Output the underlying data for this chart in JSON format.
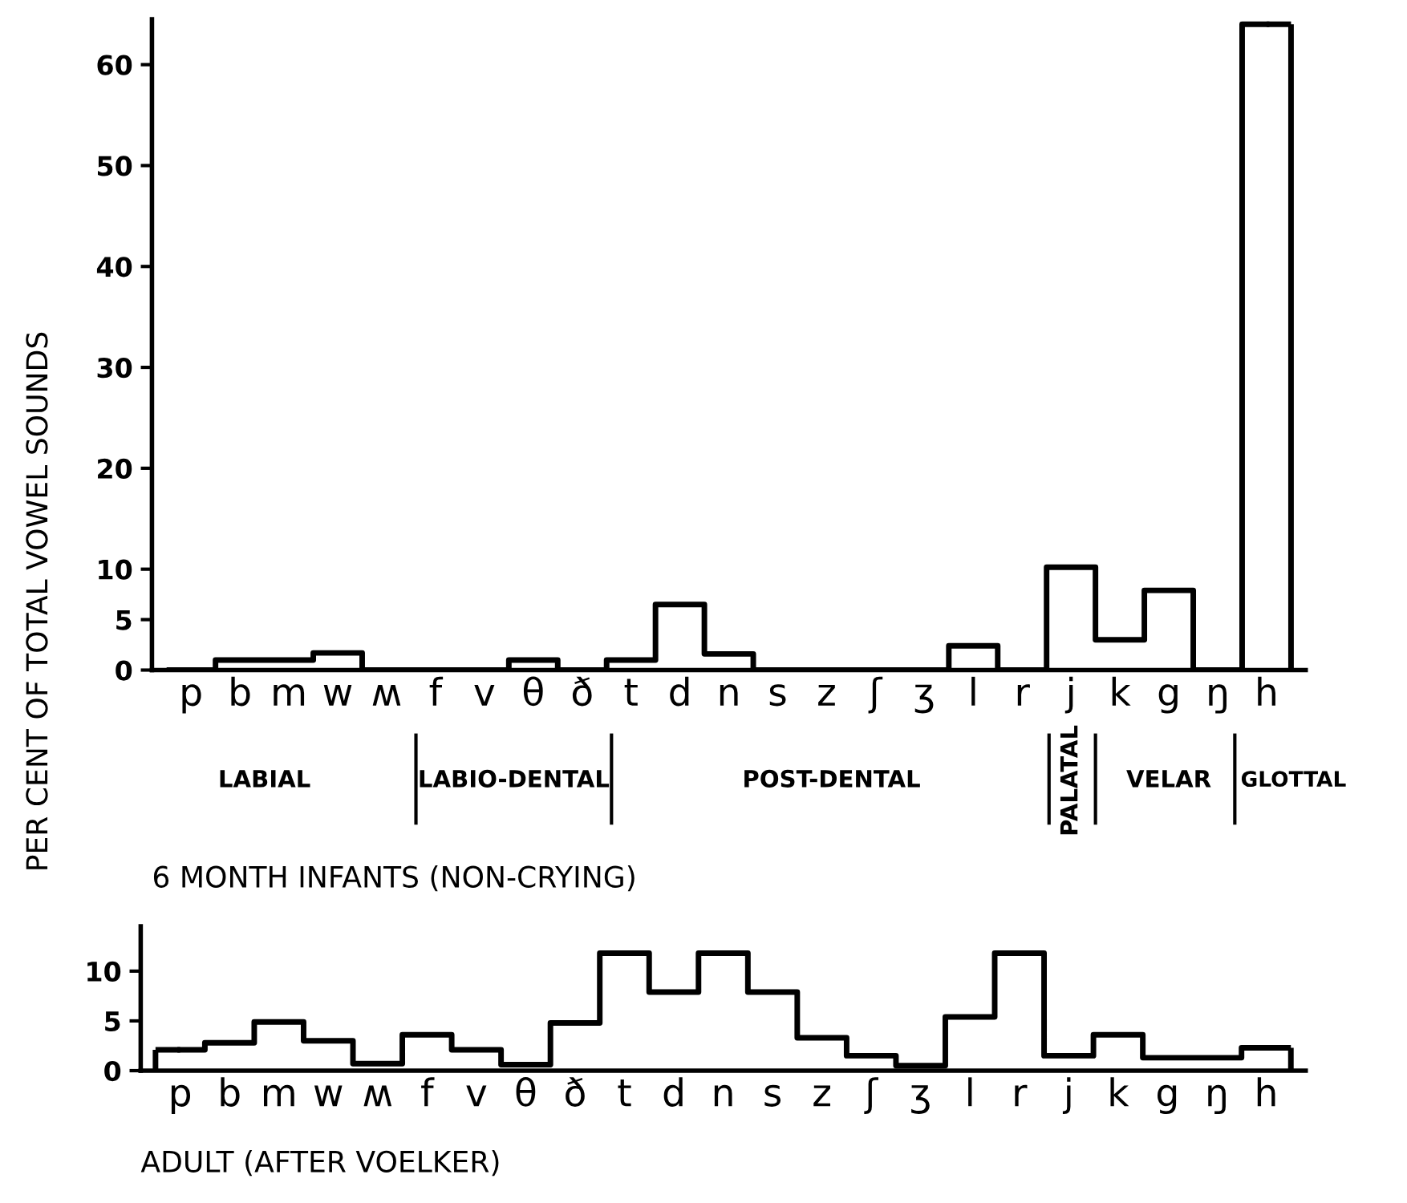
{
  "chart_data": [
    {
      "type": "step",
      "title": "6 MONTH INFANTS (NON-CRYING)",
      "ylabel": "PER CENT OF TOTAL VOWEL SOUNDS",
      "categories": [
        "p",
        "b",
        "m",
        "w",
        "ʍ",
        "f",
        "v",
        "θ",
        "ð",
        "t",
        "d",
        "n",
        "s",
        "z",
        "ʃ",
        "ʒ",
        "l",
        "r",
        "j",
        "k",
        "g",
        "ŋ",
        "h"
      ],
      "values": [
        0,
        1.0,
        1.0,
        1.7,
        0,
        0,
        0,
        1.0,
        0,
        1.0,
        6.5,
        1.6,
        0,
        0,
        0,
        0,
        2.4,
        0,
        10.2,
        3.0,
        7.9,
        0,
        64
      ],
      "color": "#000000",
      "ylim": [
        0,
        64.5
      ],
      "yticks": [
        0,
        5,
        10,
        20,
        30,
        40,
        50,
        60
      ],
      "grid": false,
      "annotations": [
        "LABIAL",
        "LABIO-DENTAL",
        "POST-DENTAL",
        "PALATAL",
        "VELAR",
        "GLOTTAL"
      ]
    },
    {
      "type": "step",
      "title": "ADULT (AFTER VOELKER)",
      "categories": [
        "p",
        "b",
        "m",
        "w",
        "ʍ",
        "f",
        "v",
        "θ",
        "ð",
        "t",
        "d",
        "n",
        "s",
        "z",
        "ʃ",
        "ʒ",
        "l",
        "r",
        "j",
        "k",
        "g",
        "ŋ",
        "h"
      ],
      "values": [
        2.1,
        2.8,
        4.9,
        3.0,
        0.7,
        3.6,
        2.1,
        0.6,
        4.8,
        11.8,
        7.9,
        11.8,
        7.9,
        3.3,
        1.5,
        0.5,
        5.4,
        11.8,
        1.5,
        3.6,
        1.3,
        1.3,
        2.3
      ],
      "color": "#000000",
      "ylim": [
        0,
        14.5
      ],
      "yticks": [
        0,
        5,
        10
      ],
      "grid": false
    }
  ]
}
